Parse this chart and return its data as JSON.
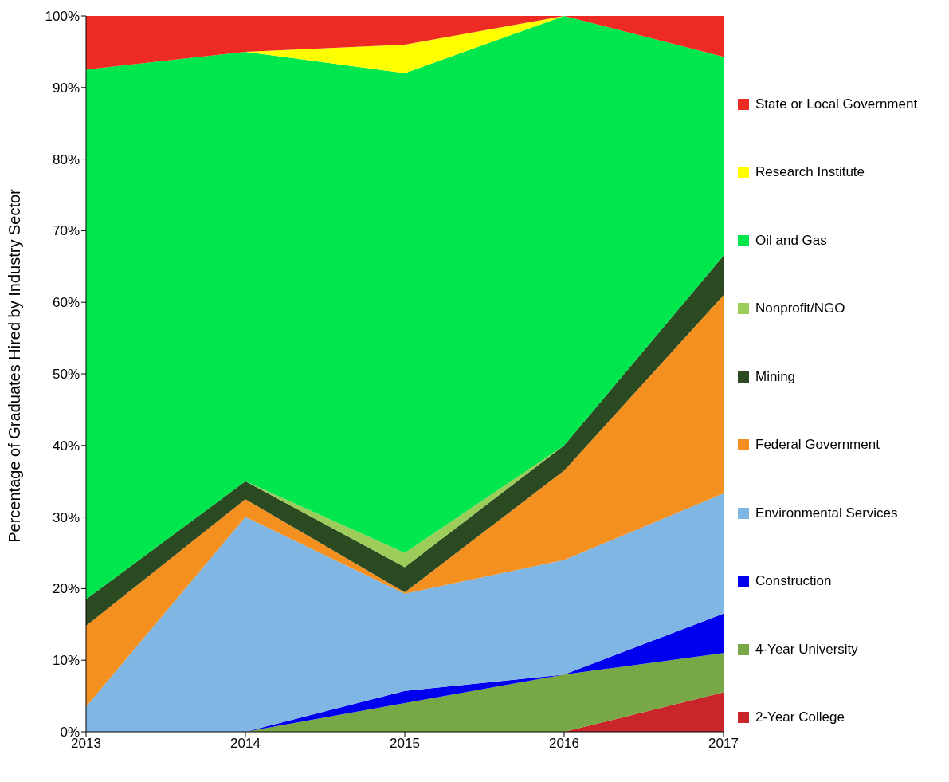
{
  "chart_data": {
    "type": "area",
    "stacked": true,
    "ylabel": "Percentage  of Graduates Hired by Industry Sector",
    "x": [
      2013,
      2014,
      2015,
      2016,
      2017
    ],
    "xlim": [
      2013,
      2017
    ],
    "xticks": [
      2013,
      2014,
      2015,
      2016,
      2017
    ],
    "ylim": [
      0,
      100
    ],
    "yticks": [
      {
        "value": 0,
        "label": "0%"
      },
      {
        "value": 10,
        "label": "10%"
      },
      {
        "value": 20,
        "label": "20%"
      },
      {
        "value": 30,
        "label": "30%"
      },
      {
        "value": 40,
        "label": "40%"
      },
      {
        "value": 50,
        "label": "50%"
      },
      {
        "value": 60,
        "label": "60%"
      },
      {
        "value": 70,
        "label": "70%"
      },
      {
        "value": 80,
        "label": "80%"
      },
      {
        "value": 90,
        "label": "90%"
      },
      {
        "value": 100,
        "label": "100%"
      }
    ],
    "legend": "right",
    "series": [
      {
        "name": "2-Year College",
        "color": "#c9262b",
        "values": [
          0,
          0,
          0,
          0,
          5.5
        ]
      },
      {
        "name": "4-Year University",
        "color": "#78a846",
        "values": [
          0,
          0,
          4,
          8,
          5.5
        ]
      },
      {
        "name": "Construction",
        "color": "#0000ee",
        "values": [
          0,
          0,
          1.7,
          0,
          5.5
        ]
      },
      {
        "name": "Environmental Services",
        "color": "#7fb6e3",
        "values": [
          3.5,
          30,
          13.6,
          16,
          16.8
        ]
      },
      {
        "name": "Federal Government",
        "color": "#f39020",
        "values": [
          11.3,
          2.5,
          0.2,
          12.5,
          27.7
        ]
      },
      {
        "name": "Mining",
        "color": "#2b4a21",
        "values": [
          3.7,
          2.5,
          3.5,
          3.5,
          5.5
        ]
      },
      {
        "name": "Nonprofit/NGO",
        "color": "#9ccc5a",
        "values": [
          0,
          0,
          2,
          0,
          0
        ]
      },
      {
        "name": "Oil and Gas",
        "color": "#00e64d",
        "values": [
          74,
          60,
          67,
          60,
          27.8
        ]
      },
      {
        "name": "Research Institute",
        "color": "#ffff00",
        "values": [
          0,
          0,
          4,
          0,
          0
        ]
      },
      {
        "name": "State or Local Government",
        "color": "#ee2a24",
        "values": [
          7.5,
          5,
          4,
          0,
          5.7
        ]
      }
    ]
  }
}
